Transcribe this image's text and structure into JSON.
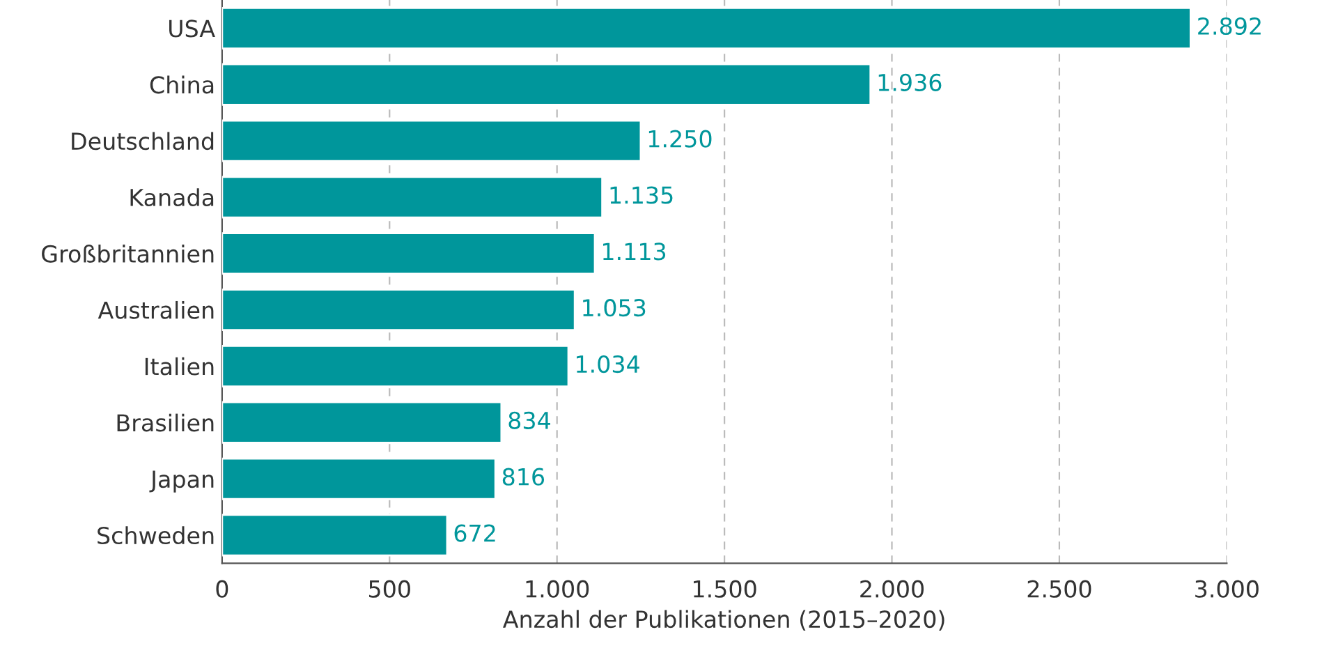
{
  "chart_data": {
    "type": "bar",
    "orientation": "horizontal",
    "xlabel": "Anzahl der Publikationen (2015–2020)",
    "categories": [
      "USA",
      "China",
      "Deutschland",
      "Kanada",
      "Großbritannien",
      "Australien",
      "Italien",
      "Brasilien",
      "Japan",
      "Schweden"
    ],
    "values": [
      2892,
      1936,
      1250,
      1135,
      1113,
      1053,
      1034,
      834,
      816,
      672
    ],
    "value_labels": [
      "2.892",
      "1.936",
      "1.250",
      "1.135",
      "1.113",
      "1.053",
      "1.034",
      "834",
      "816",
      "672"
    ],
    "color": "#00969b",
    "xlim": [
      0,
      3000
    ],
    "xticks": [
      0,
      500,
      {
        "value": 1000,
        "label": "1.000"
      },
      {
        "value": 1500,
        "label": "1.500"
      },
      {
        "value": 2000,
        "label": "2.000"
      },
      {
        "value": 2500,
        "label": "2.500"
      },
      {
        "value": 3000,
        "label": "3.000"
      }
    ],
    "grid": "x",
    "line_style": "dashed",
    "legend": false
  }
}
